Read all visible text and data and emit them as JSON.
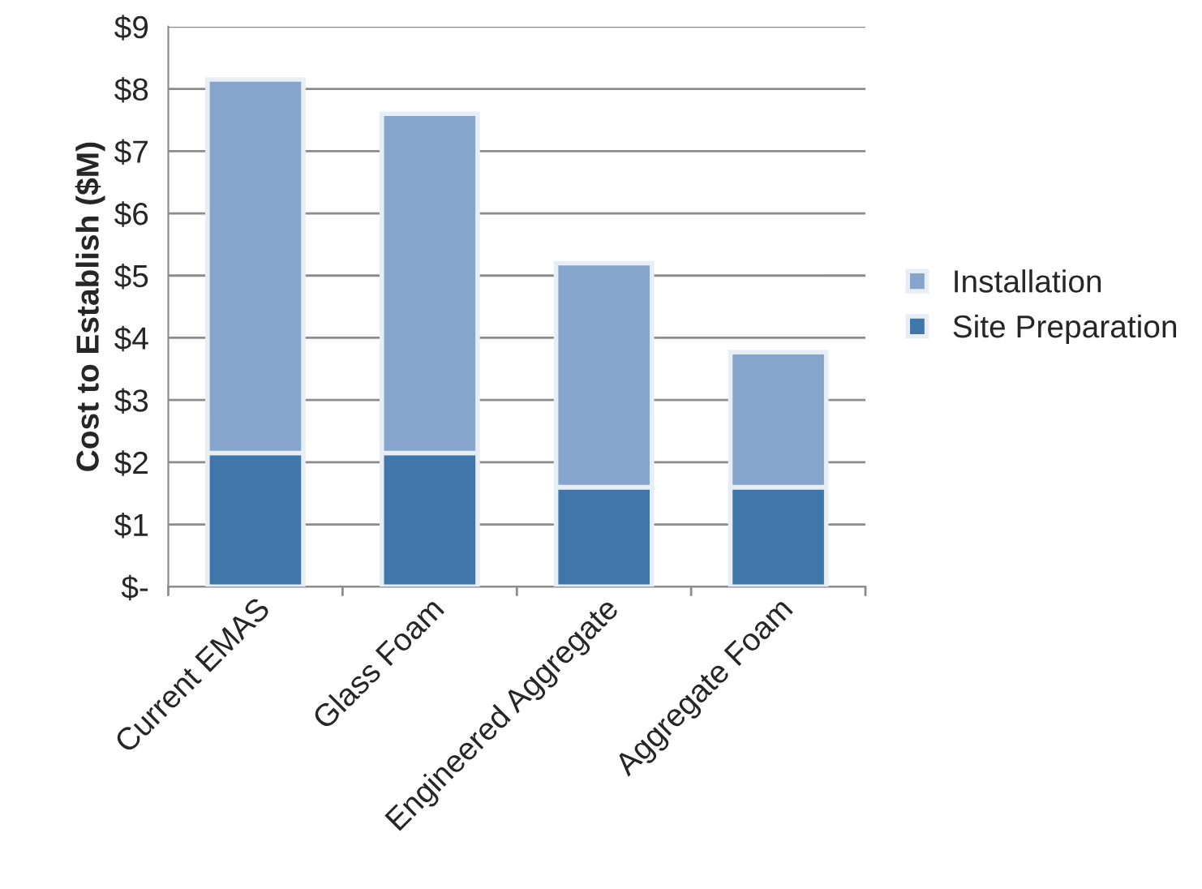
{
  "chart_data": {
    "type": "bar",
    "stacked": true,
    "ylabel": "Cost to Establish ($M)",
    "categories": [
      "Current EMAS",
      "Glass Foam",
      "Engineered Aggregate",
      "Aggregate Foam"
    ],
    "series": [
      {
        "name": "Site Preparation",
        "color": "#3f77aa",
        "values": [
          2.15,
          2.15,
          1.6,
          1.6
        ]
      },
      {
        "name": "Installation",
        "color": "#85a5cc",
        "values": [
          6.0,
          5.45,
          3.6,
          2.17
        ]
      }
    ],
    "ylim": [
      0,
      9
    ],
    "yticks": [
      {
        "value": 0,
        "label": "$-"
      },
      {
        "value": 1,
        "label": "$1"
      },
      {
        "value": 2,
        "label": "$2"
      },
      {
        "value": 3,
        "label": "$3"
      },
      {
        "value": 4,
        "label": "$4"
      },
      {
        "value": 5,
        "label": "$5"
      },
      {
        "value": 6,
        "label": "$6"
      },
      {
        "value": 7,
        "label": "$7"
      },
      {
        "value": 8,
        "label": "$8"
      },
      {
        "value": 9,
        "label": "$9"
      }
    ],
    "grid": "y",
    "legend": "right"
  }
}
